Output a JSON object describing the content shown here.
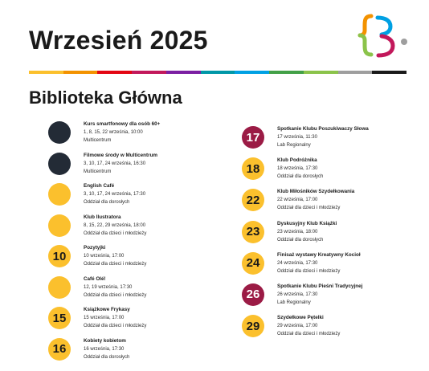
{
  "header": {
    "title": "Wrzesień 2025"
  },
  "colors": {
    "yellow": "#fbc02d",
    "dark": "#232b36",
    "maroon": "#9b1b45"
  },
  "stripe_colors": [
    "#fbc02d",
    "#f39200",
    "#e30613",
    "#c2185b",
    "#7b1fa2",
    "#0097a7",
    "#00a0e3",
    "#43a047",
    "#8bc34a",
    "#9e9e9e",
    "#1a1a1a"
  ],
  "section": {
    "title": "Biblioteka Główna"
  },
  "left_events": [
    {
      "day": "",
      "color": "dark",
      "title": "Kurs smartfonowy dla osób 60+",
      "date": "1, 8, 15, 22 września, 10:00",
      "place": "Multicentrum"
    },
    {
      "day": "",
      "color": "dark",
      "title": "Filmowe środy w Multicentrum",
      "date": "3, 10, 17, 24 września, 16:30",
      "place": "Multicentrum"
    },
    {
      "day": "",
      "color": "yellow",
      "title": "English Café",
      "date": "3, 10, 17, 24 września, 17:30",
      "place": "Oddział dla dorosłych"
    },
    {
      "day": "",
      "color": "yellow",
      "title": "Klub Ilustratora",
      "date": "8, 15, 22, 29 września, 18:00",
      "place": "Oddział dla dzieci i młodzieży"
    },
    {
      "day": "10",
      "color": "yellow",
      "title": "Pozytyjki",
      "date": "10 września, 17:00",
      "place": "Oddział dla dzieci i młodzieży"
    },
    {
      "day": "",
      "color": "yellow",
      "title": "Café Olé!",
      "date": "12, 19 września, 17:30",
      "place": "Oddział dla dzieci i młodzieży"
    },
    {
      "day": "15",
      "color": "yellow",
      "title": "Książkowe Frykasy",
      "date": "15 września, 17:00",
      "place": "Oddział dla dzieci i młodzieży"
    },
    {
      "day": "16",
      "color": "yellow",
      "title": "Kobiety kobietom",
      "date": "16 września, 17:30",
      "place": "Oddział dla dorosłych"
    }
  ],
  "right_events": [
    {
      "day": "17",
      "color": "maroon",
      "title": "Spotkanie Klubu Poszukiwaczy Słowa",
      "date": "17 września, 11:30",
      "place": "Lab Regionalny"
    },
    {
      "day": "18",
      "color": "yellow",
      "title": "Klub Podróżnika",
      "date": "18 września, 17:30",
      "place": "Oddział dla dorosłych"
    },
    {
      "day": "22",
      "color": "yellow",
      "title": "Klub Miłośników Szydełkowania",
      "date": "22 września, 17:00",
      "place": "Oddział dla dzieci i młodzieży"
    },
    {
      "day": "23",
      "color": "yellow",
      "title": "Dyskusyjny Klub Książki",
      "date": "23 września, 18:00",
      "place": "Oddział dla dorosłych"
    },
    {
      "day": "24",
      "color": "yellow",
      "title": "Finisaż wystawy Kreatywny Kocioł",
      "date": "24 września, 17:30",
      "place": "Oddział dla dzieci i młodzieży"
    },
    {
      "day": "26",
      "color": "maroon",
      "title": "Spotkanie Klubu Pieśni Tradycyjnej",
      "date": "26 września, 17:30",
      "place": "Lab Regionalny"
    },
    {
      "day": "29",
      "color": "yellow",
      "title": "Szydełkowe Pętelki",
      "date": "29 września, 17:00",
      "place": "Oddział dla dzieci i młodzieży"
    }
  ]
}
